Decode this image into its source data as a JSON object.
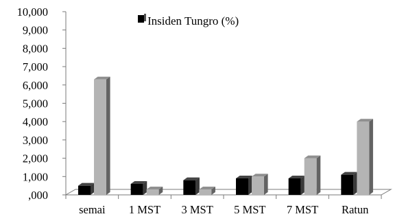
{
  "chart_data": {
    "type": "bar",
    "title": "",
    "xlabel": "",
    "ylabel": "",
    "categories": [
      "semai",
      "1 MST",
      "3 MST",
      "5 MST",
      "7 MST",
      "Ratun"
    ],
    "ylim": [
      0,
      10
    ],
    "y_ticks": [
      ",000",
      "1,000",
      "2,000",
      "3,000",
      "4,000",
      "5,000",
      "6,000",
      "7,000",
      "8,000",
      "9,000",
      "10,000"
    ],
    "legend": {
      "placement": "top-center",
      "label": "Insiden Tungro (%)"
    },
    "grid": false,
    "series": [
      {
        "name": "Insiden Tungro (%)",
        "color": "#000000",
        "values": [
          0.5,
          0.6,
          0.8,
          0.9,
          0.9,
          1.1
        ]
      },
      {
        "name": "",
        "color": "#b4b4b4",
        "values": [
          6.3,
          0.3,
          0.3,
          1.0,
          2.0,
          4.0
        ]
      }
    ]
  }
}
